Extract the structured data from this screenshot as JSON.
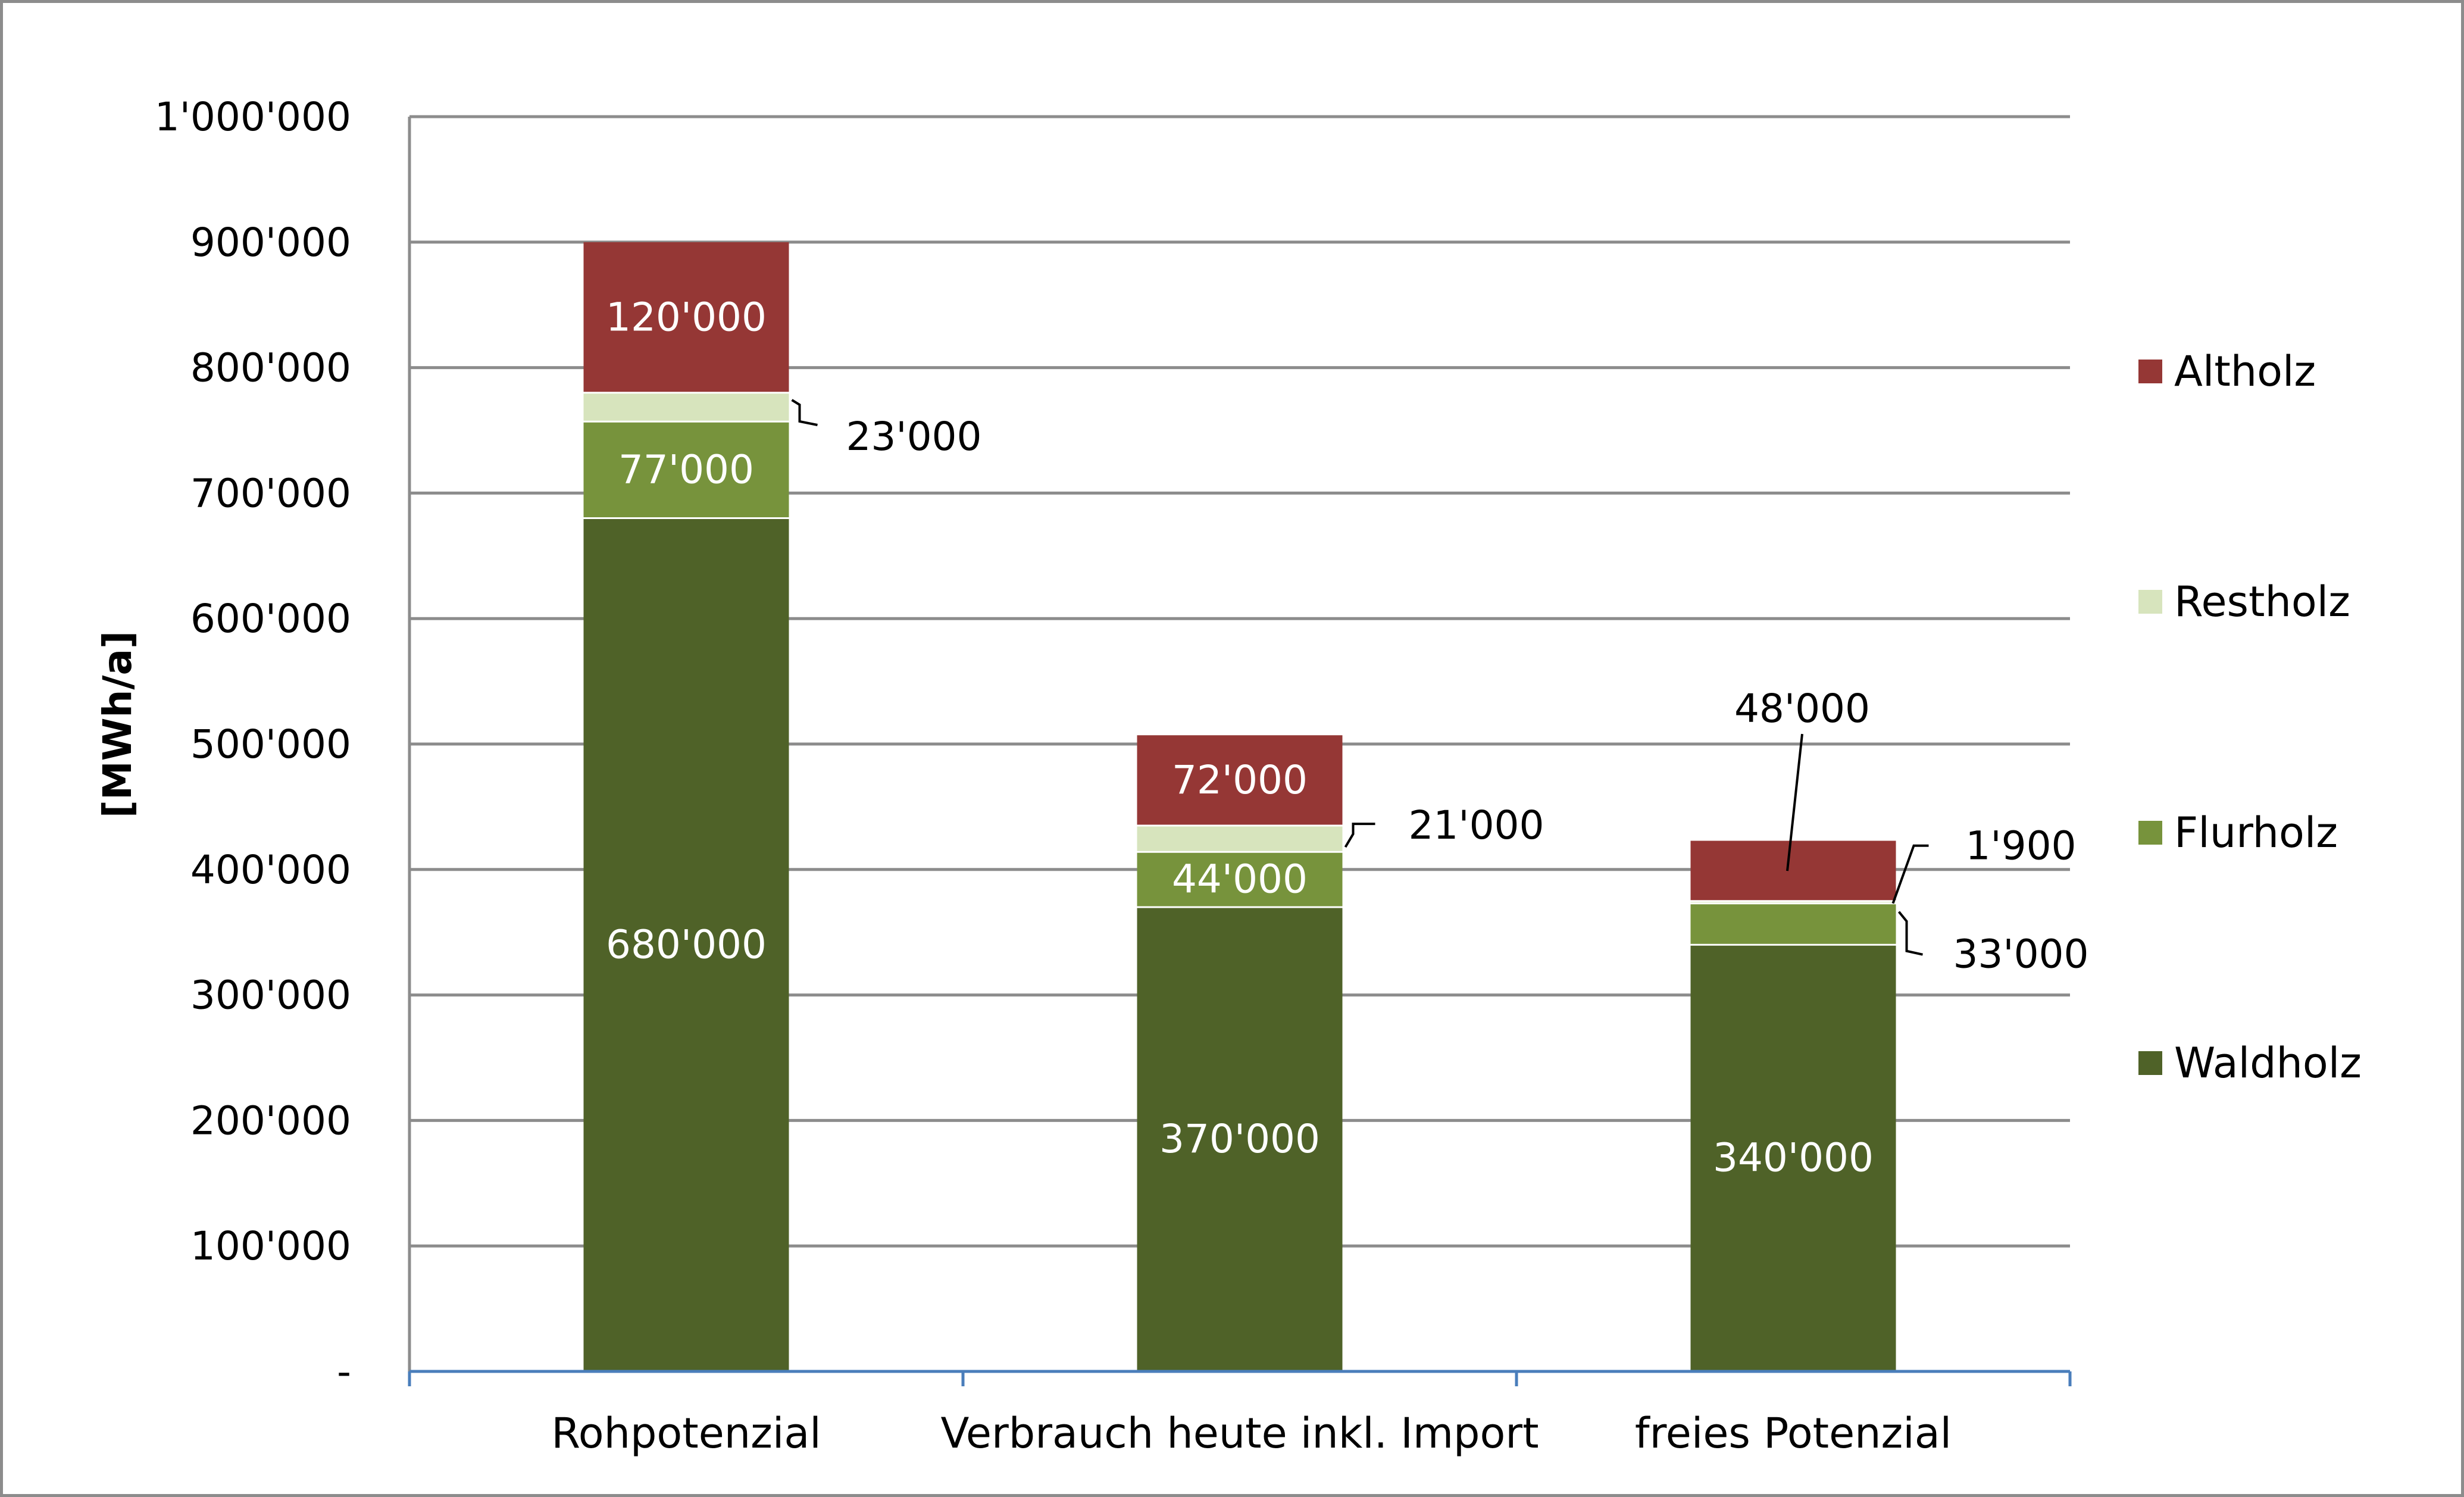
{
  "chart_data": {
    "type": "bar",
    "stacked": true,
    "categories": [
      "Rohpotenzial",
      "Verbrauch heute inkl. Import",
      "freies Potenzial"
    ],
    "series": [
      {
        "name": "Waldholz",
        "color": "#4f6228",
        "values": [
          680000,
          370000,
          340000
        ]
      },
      {
        "name": "Flurholz",
        "color": "#77933c",
        "values": [
          77000,
          44000,
          33000
        ]
      },
      {
        "name": "Restholz",
        "color": "#d7e4bd",
        "values": [
          23000,
          21000,
          1900
        ]
      },
      {
        "name": "Altholz",
        "color": "#953735",
        "values": [
          120000,
          72000,
          48000
        ]
      }
    ],
    "data_labels": [
      [
        "680'000",
        "370'000",
        "340'000"
      ],
      [
        "77'000",
        "44'000",
        "33'000"
      ],
      [
        "23'000",
        "21'000",
        "1'900"
      ],
      [
        "120'000",
        "72'000",
        "48'000"
      ]
    ],
    "ylabel": "[MWh/a]",
    "xlabel": "",
    "ylim": [
      0,
      1000000
    ],
    "y_ticks": [
      0,
      100000,
      200000,
      300000,
      400000,
      500000,
      600000,
      700000,
      800000,
      900000,
      1000000
    ],
    "y_tick_labels": [
      "-",
      "100'000",
      "200'000",
      "300'000",
      "400'000",
      "500'000",
      "600'000",
      "700'000",
      "800'000",
      "900'000",
      "1'000'000"
    ],
    "legend": {
      "position": "right",
      "entries": [
        "Altholz",
        "Restholz",
        "Flurholz",
        "Waldholz"
      ]
    },
    "grid": true
  }
}
